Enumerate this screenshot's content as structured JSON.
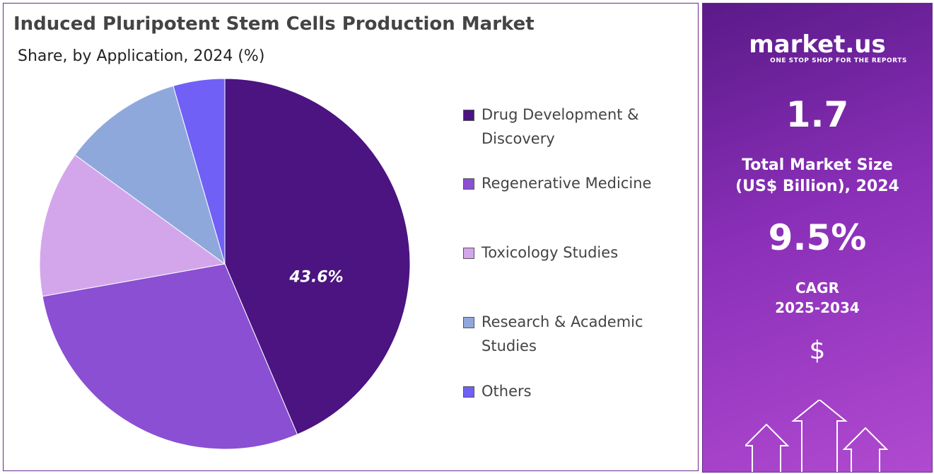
{
  "chart_data": {
    "type": "pie",
    "title": "Induced Pluripotent Stem Cells Production Market",
    "subtitle": "Share, by Application, 2024 (%)",
    "categories": [
      "Drug Development & Discovery",
      "Regenerative Medicine",
      "Toxicology Studies",
      "Research & Academic Studies",
      "Others"
    ],
    "values": [
      43.6,
      28.6,
      12.8,
      10.5,
      4.5
    ],
    "value_labels": [
      "43.6%",
      null,
      null,
      null,
      null
    ],
    "colors": [
      "#4b1480",
      "#8a4fd2",
      "#d3a6ec",
      "#8fa8dc",
      "#7060f5"
    ]
  },
  "panel": {
    "brand": "market.us",
    "tagline": "ONE STOP SHOP FOR THE REPORTS",
    "market_size": "1.7",
    "market_size_label": "Total Market Size (US$ Billion), 2024",
    "cagr": "9.5%",
    "cagr_label": "CAGR 2025-2034",
    "currency_icon": "$"
  }
}
